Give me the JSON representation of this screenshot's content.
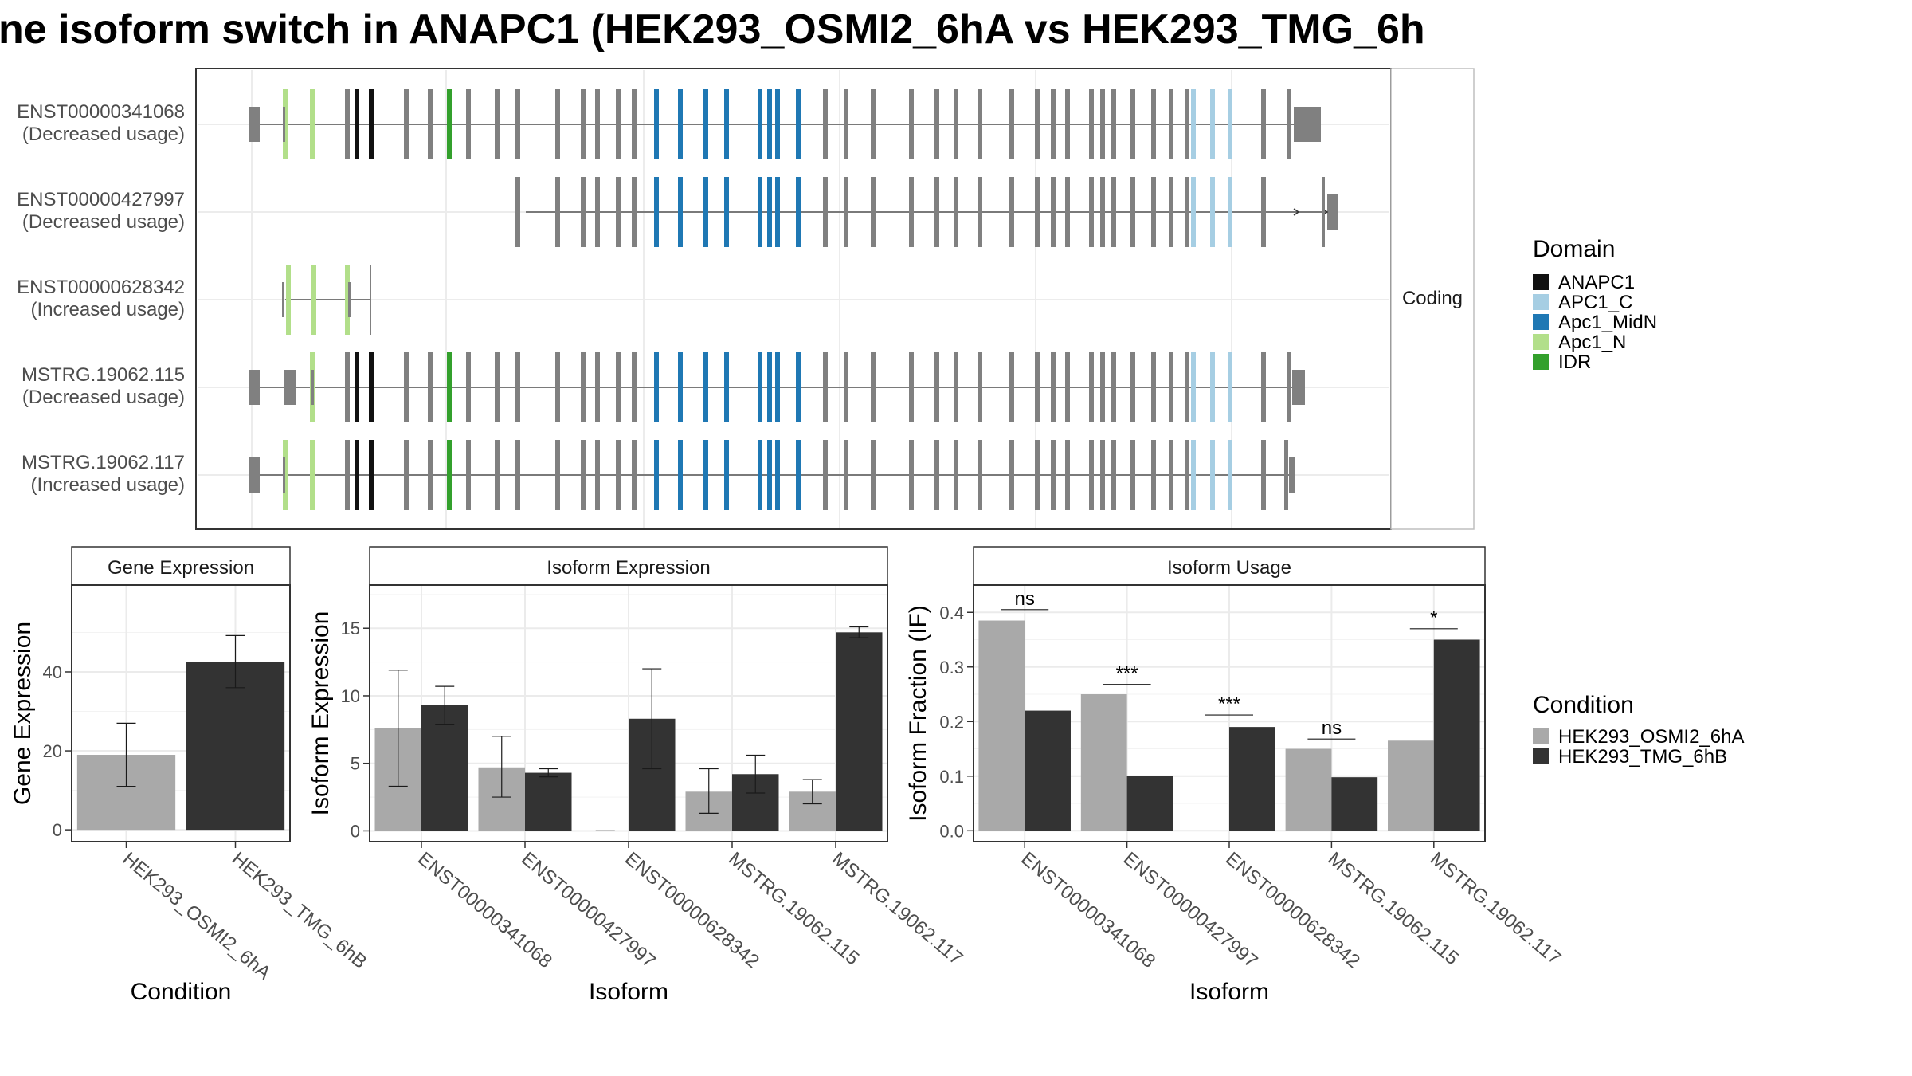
{
  "title": "ne isoform switch in ANAPC1 (HEK293_OSMI2_6hA vs HEK293_TMG_6h",
  "colors": {
    "cond_a": "#a9a9a9",
    "cond_b": "#333333",
    "exon": "#808080",
    "ANAPC1": "#111111",
    "APC1_C": "#a6cee3",
    "Apc1_MidN": "#1f78b4",
    "Apc1_N": "#b2df8a",
    "IDR": "#33a02c"
  },
  "legend": {
    "domain_title": "Domain",
    "domains": [
      "ANAPC1",
      "APC1_C",
      "Apc1_MidN",
      "Apc1_N",
      "IDR"
    ],
    "condition_title": "Condition",
    "conditions": [
      "HEK293_OSMI2_6hA",
      "HEK293_TMG_6hB"
    ]
  },
  "structure": {
    "strip_label": "Coding",
    "transcripts": [
      {
        "id": "ENST00000341068",
        "usage": "(Decreased usage)"
      },
      {
        "id": "ENST00000427997",
        "usage": "(Decreased usage)"
      },
      {
        "id": "ENST00000628342",
        "usage": "(Increased usage)"
      },
      {
        "id": "MSTRG.19062.115",
        "usage": "(Decreased usage)"
      },
      {
        "id": "MSTRG.19062.117",
        "usage": "(Increased usage)"
      }
    ]
  },
  "chart_data": [
    {
      "type": "bar",
      "title": "Gene Expression",
      "xlabel": "Condition",
      "ylabel": "Gene Expression",
      "ylim": [
        -3,
        62
      ],
      "yticks": [
        0,
        20,
        40
      ],
      "categories": [
        "HEK293_OSMI2_6hA",
        "HEK293_TMG_6hB"
      ],
      "series": [
        {
          "name": "HEK293_OSMI2_6hA",
          "values": [
            19,
            null
          ],
          "err_low": [
            11,
            null
          ],
          "err_high": [
            27,
            null
          ]
        },
        {
          "name": "HEK293_TMG_6hB",
          "values": [
            null,
            42.5
          ],
          "err_low": [
            null,
            36
          ],
          "err_high": [
            null,
            49.2
          ]
        }
      ]
    },
    {
      "type": "bar",
      "title": "Isoform Expression",
      "xlabel": "Isoform",
      "ylabel": "Isoform Expression",
      "ylim": [
        -0.8,
        18.2
      ],
      "yticks": [
        0,
        5,
        10,
        15
      ],
      "categories": [
        "ENST00000341068",
        "ENST00000427997",
        "ENST00000628342",
        "MSTRG.19062.115",
        "MSTRG.19062.117"
      ],
      "series": [
        {
          "name": "HEK293_OSMI2_6hA",
          "values": [
            7.6,
            4.7,
            0,
            2.9,
            2.9
          ],
          "err_low": [
            3.3,
            2.5,
            0,
            1.3,
            2.0
          ],
          "err_high": [
            11.9,
            7.0,
            0,
            4.6,
            3.8
          ]
        },
        {
          "name": "HEK293_TMG_6hB",
          "values": [
            9.3,
            4.3,
            8.3,
            4.2,
            14.7
          ],
          "err_low": [
            7.9,
            4.0,
            4.6,
            2.8,
            14.3
          ],
          "err_high": [
            10.7,
            4.6,
            12.0,
            5.6,
            15.1
          ]
        }
      ]
    },
    {
      "type": "bar",
      "title": "Isoform Usage",
      "xlabel": "Isoform",
      "ylabel": "Isoform Fraction (IF)",
      "ylim": [
        -0.02,
        0.45
      ],
      "yticks": [
        0.0,
        0.1,
        0.2,
        0.3,
        0.4
      ],
      "categories": [
        "ENST00000341068",
        "ENST00000427997",
        "ENST00000628342",
        "MSTRG.19062.115",
        "MSTRG.19062.117"
      ],
      "series": [
        {
          "name": "HEK293_OSMI2_6hA",
          "values": [
            0.385,
            0.25,
            0.0,
            0.15,
            0.165
          ]
        },
        {
          "name": "HEK293_TMG_6hB",
          "values": [
            0.22,
            0.1,
            0.19,
            0.098,
            0.35
          ]
        }
      ],
      "annotations": [
        {
          "category": "ENST00000341068",
          "label": "ns",
          "y": 0.405
        },
        {
          "category": "ENST00000427997",
          "label": "***",
          "y": 0.268
        },
        {
          "category": "ENST00000628342",
          "label": "***",
          "y": 0.212
        },
        {
          "category": "MSTRG.19062.115",
          "label": "ns",
          "y": 0.168
        },
        {
          "category": "MSTRG.19062.117",
          "label": "*",
          "y": 0.37
        }
      ]
    }
  ]
}
